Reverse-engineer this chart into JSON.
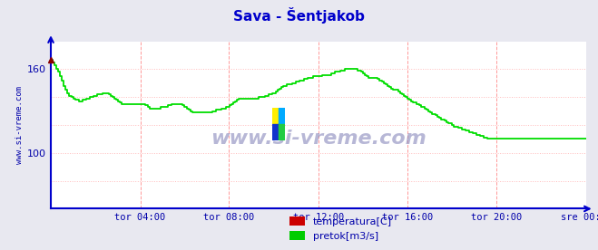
{
  "title": "Sava - Šentjakob",
  "title_color": "#0000cc",
  "bg_color": "#e8e8f0",
  "plot_bg_color": "#ffffff",
  "axis_color": "#0000cc",
  "tick_label_color": "#0000aa",
  "ylabel_text": "www.si-vreme.com",
  "ylabel_color": "#0000aa",
  "watermark": "www.si-vreme.com",
  "x_tick_labels": [
    "tor 04:00",
    "tor 08:00",
    "tor 12:00",
    "tor 16:00",
    "tor 20:00",
    "sre 00:00"
  ],
  "ylim_min": 60,
  "ylim_max": 180,
  "yticks": [
    100,
    160
  ],
  "vgrid_positions": [
    0.167,
    0.333,
    0.5,
    0.667,
    0.833,
    1.0
  ],
  "hgrid_positions": [
    80,
    100,
    120,
    140,
    160
  ],
  "line_color_pretok": "#00dd00",
  "line_color_temp": "#cc0000",
  "legend_labels": [
    "temperatura[C]",
    "pretok[m3/s]"
  ],
  "legend_colors": [
    "#cc0000",
    "#00cc00"
  ],
  "figsize": [
    6.59,
    2.76
  ],
  "dpi": 100,
  "flow_data": [
    167,
    165,
    163,
    160,
    158,
    155,
    152,
    148,
    145,
    143,
    141,
    140,
    139,
    138,
    138,
    137,
    137,
    138,
    138,
    139,
    139,
    140,
    140,
    141,
    141,
    142,
    142,
    142,
    143,
    143,
    143,
    142,
    141,
    140,
    139,
    138,
    137,
    136,
    135,
    135,
    135,
    135,
    135,
    135,
    135,
    135,
    135,
    135,
    135,
    135,
    135,
    134,
    133,
    132,
    132,
    132,
    132,
    132,
    132,
    133,
    133,
    133,
    133,
    134,
    134,
    135,
    135,
    135,
    135,
    135,
    135,
    134,
    133,
    132,
    131,
    130,
    129,
    129,
    129,
    129,
    129,
    129,
    129,
    129,
    129,
    129,
    129,
    130,
    130,
    131,
    131,
    131,
    132,
    132,
    133,
    133,
    134,
    135,
    136,
    137,
    138,
    139,
    139,
    139,
    139,
    139,
    139,
    139,
    139,
    139,
    139,
    139,
    140,
    140,
    140,
    141,
    141,
    142,
    142,
    143,
    143,
    144,
    145,
    146,
    147,
    148,
    148,
    149,
    149,
    149,
    150,
    150,
    151,
    151,
    152,
    152,
    153,
    153,
    154,
    154,
    154,
    155,
    155,
    155,
    155,
    155,
    156,
    156,
    156,
    156,
    156,
    157,
    157,
    158,
    158,
    158,
    159,
    159,
    160,
    160,
    160,
    160,
    160,
    160,
    160,
    159,
    159,
    158,
    157,
    156,
    155,
    154,
    154,
    154,
    154,
    154,
    153,
    152,
    151,
    150,
    149,
    148,
    147,
    146,
    145,
    145,
    145,
    144,
    143,
    142,
    141,
    140,
    139,
    138,
    137,
    136,
    136,
    135,
    134,
    133,
    133,
    132,
    131,
    130,
    129,
    128,
    128,
    127,
    126,
    125,
    124,
    124,
    123,
    122,
    121,
    121,
    120,
    119,
    119,
    118,
    118,
    117,
    117,
    116,
    116,
    115,
    115,
    114,
    114,
    113,
    113,
    112,
    112,
    111,
    111,
    110,
    110,
    110,
    110,
    110,
    110,
    110,
    110,
    110,
    110,
    110,
    110,
    110,
    110,
    110,
    110,
    110,
    110,
    110,
    110,
    110,
    110,
    110,
    110,
    110,
    110,
    110,
    110,
    110,
    110,
    110,
    110,
    110,
    110,
    110,
    110,
    110,
    110,
    110,
    110,
    110,
    110,
    110,
    110,
    110,
    110,
    110,
    110,
    110,
    110,
    110,
    110,
    110,
    110
  ]
}
